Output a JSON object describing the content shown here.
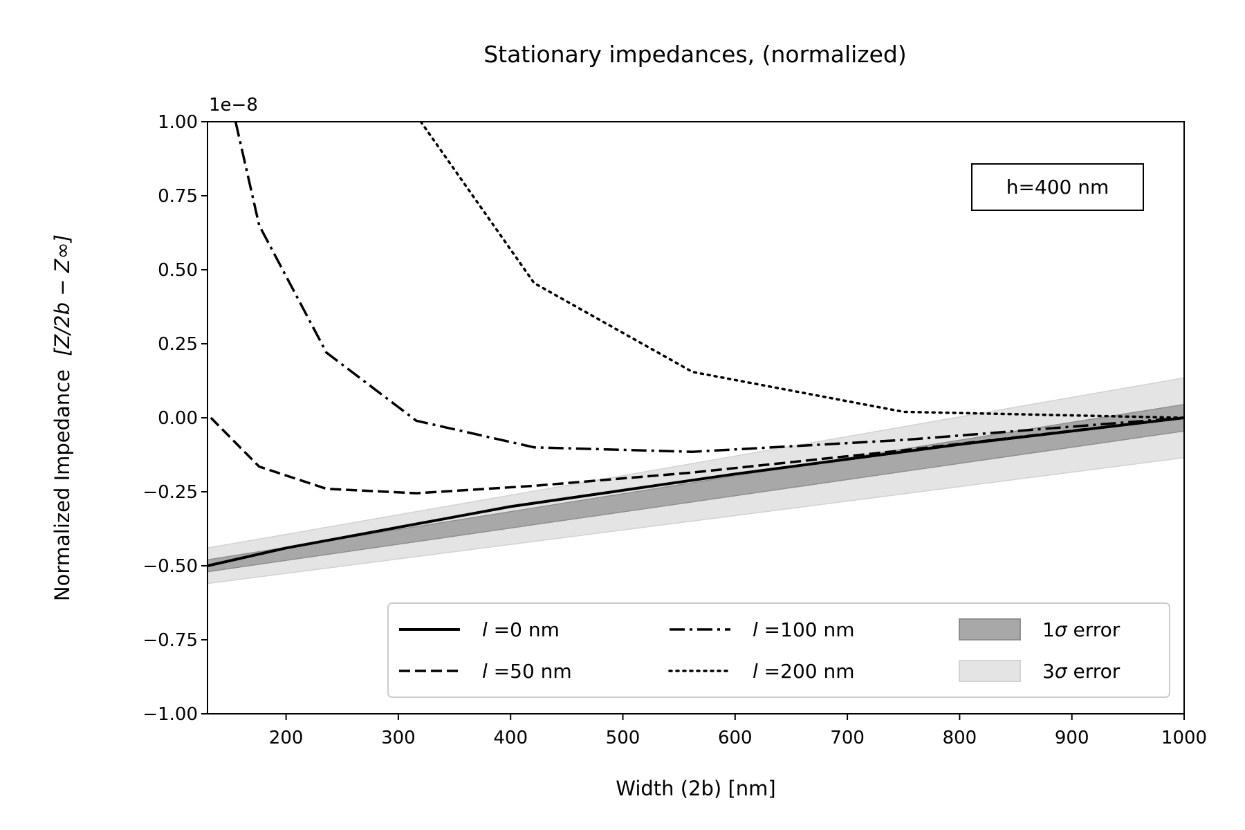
{
  "chart_data": {
    "type": "line",
    "title": "Stationary impedances, (normalized)",
    "xlabel": "Width (2b) [nm]",
    "ylabel": "Normalized Impedance",
    "ylabel_math": "[Z/2b − Z∞]",
    "y_offset_label": "1e−8",
    "xlim": [
      130,
      1000
    ],
    "ylim": [
      -1.0,
      1.0
    ],
    "x_ticks": [
      200,
      300,
      400,
      500,
      600,
      700,
      800,
      900,
      1000
    ],
    "x_tick_labels": [
      "200",
      "300",
      "400",
      "500",
      "600",
      "700",
      "800",
      "900",
      "1000"
    ],
    "y_ticks": [
      -1.0,
      -0.75,
      -0.5,
      -0.25,
      0.0,
      0.25,
      0.5,
      0.75,
      1.0
    ],
    "y_tick_labels": [
      "−1.00",
      "−0.75",
      "−0.50",
      "−0.25",
      "0.00",
      "0.25",
      "0.50",
      "0.75",
      "1.00"
    ],
    "grid": false,
    "annotation": "h=400 nm",
    "legend_position": "lower-right",
    "series": [
      {
        "name": "l =0 nm",
        "legend_italic": "l",
        "legend_rest": " =0 nm",
        "dash": "solid",
        "x": [
          130,
          200,
          300,
          400,
          500,
          600,
          700,
          800,
          900,
          1000
        ],
        "y": [
          -0.5,
          -0.44,
          -0.37,
          -0.3,
          -0.245,
          -0.19,
          -0.14,
          -0.09,
          -0.045,
          0.0
        ]
      },
      {
        "name": "l =50 nm",
        "legend_italic": "l",
        "legend_rest": " =50 nm",
        "dash": "dashed",
        "x": [
          133,
          176,
          236,
          316,
          421,
          562,
          750,
          1000
        ],
        "y": [
          0.0,
          -0.165,
          -0.24,
          -0.255,
          -0.23,
          -0.185,
          -0.11,
          0.0
        ]
      },
      {
        "name": "l =100 nm",
        "legend_italic": "l",
        "legend_rest": " =100 nm",
        "dash": "dashdot",
        "x": [
          155,
          176,
          236,
          316,
          421,
          562,
          750,
          1000
        ],
        "y": [
          1.0,
          0.65,
          0.22,
          -0.01,
          -0.1,
          -0.115,
          -0.075,
          0.0
        ]
      },
      {
        "name": "l =200 nm",
        "legend_italic": "l",
        "legend_rest": " =200 nm",
        "dash": "dotted",
        "x": [
          320,
          421,
          562,
          750,
          1000
        ],
        "y": [
          1.0,
          0.455,
          0.155,
          0.02,
          0.0
        ]
      }
    ],
    "bands": [
      {
        "name": "1σ error",
        "legend_number": "1",
        "legend_sigma": "σ",
        "legend_rest": " error",
        "color": "#a8a8a8",
        "x": [
          130,
          1000
        ],
        "lower": [
          -0.52,
          -0.045
        ],
        "upper": [
          -0.48,
          0.045
        ]
      },
      {
        "name": "3σ error",
        "legend_number": "3",
        "legend_sigma": "σ",
        "legend_rest": " error",
        "color": "#e4e4e4",
        "x": [
          130,
          1000
        ],
        "lower": [
          -0.56,
          -0.135
        ],
        "upper": [
          -0.44,
          0.135
        ]
      }
    ]
  }
}
